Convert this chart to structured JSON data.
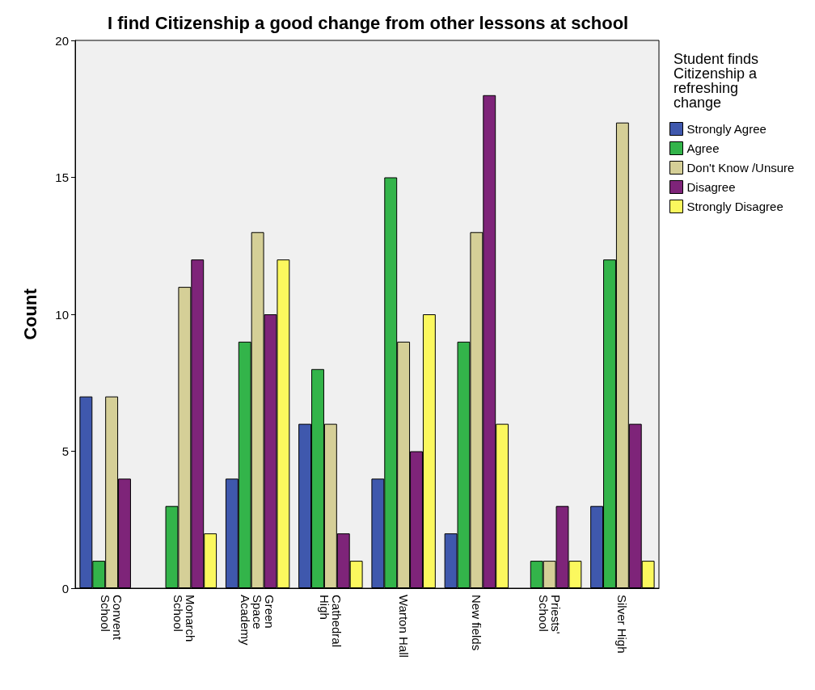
{
  "chart_data": {
    "type": "bar",
    "title": "I find Citizenship a good change from other lessons at school",
    "ylabel": "Count",
    "legend_title": "Student finds Citizenship a refreshing change",
    "categories": [
      "Convent School",
      "Monarch School",
      "Green Space Academy",
      "Cathedral High",
      "Warton Hall",
      "New fields",
      "Priests' School",
      "Silver High"
    ],
    "series": [
      {
        "name": "Strongly Agree",
        "color": "#3f58ad",
        "values": [
          7,
          null,
          4,
          6,
          4,
          2,
          null,
          3
        ]
      },
      {
        "name": "Agree",
        "color": "#33b44a",
        "values": [
          1,
          3,
          9,
          8,
          15,
          9,
          1,
          12
        ]
      },
      {
        "name": "Don't Know /Unsure",
        "color": "#d5cf97",
        "values": [
          7,
          11,
          13,
          6,
          9,
          13,
          1,
          17
        ]
      },
      {
        "name": "Disagree",
        "color": "#7e2479",
        "values": [
          4,
          12,
          10,
          2,
          5,
          18,
          3,
          6
        ]
      },
      {
        "name": "Strongly Disagree",
        "color": "#fbf85e",
        "values": [
          null,
          2,
          12,
          1,
          10,
          6,
          1,
          1
        ]
      }
    ],
    "ylim": [
      0,
      20
    ],
    "yticks": [
      0,
      5,
      10,
      15,
      20
    ],
    "grid": false,
    "legend": "right"
  }
}
